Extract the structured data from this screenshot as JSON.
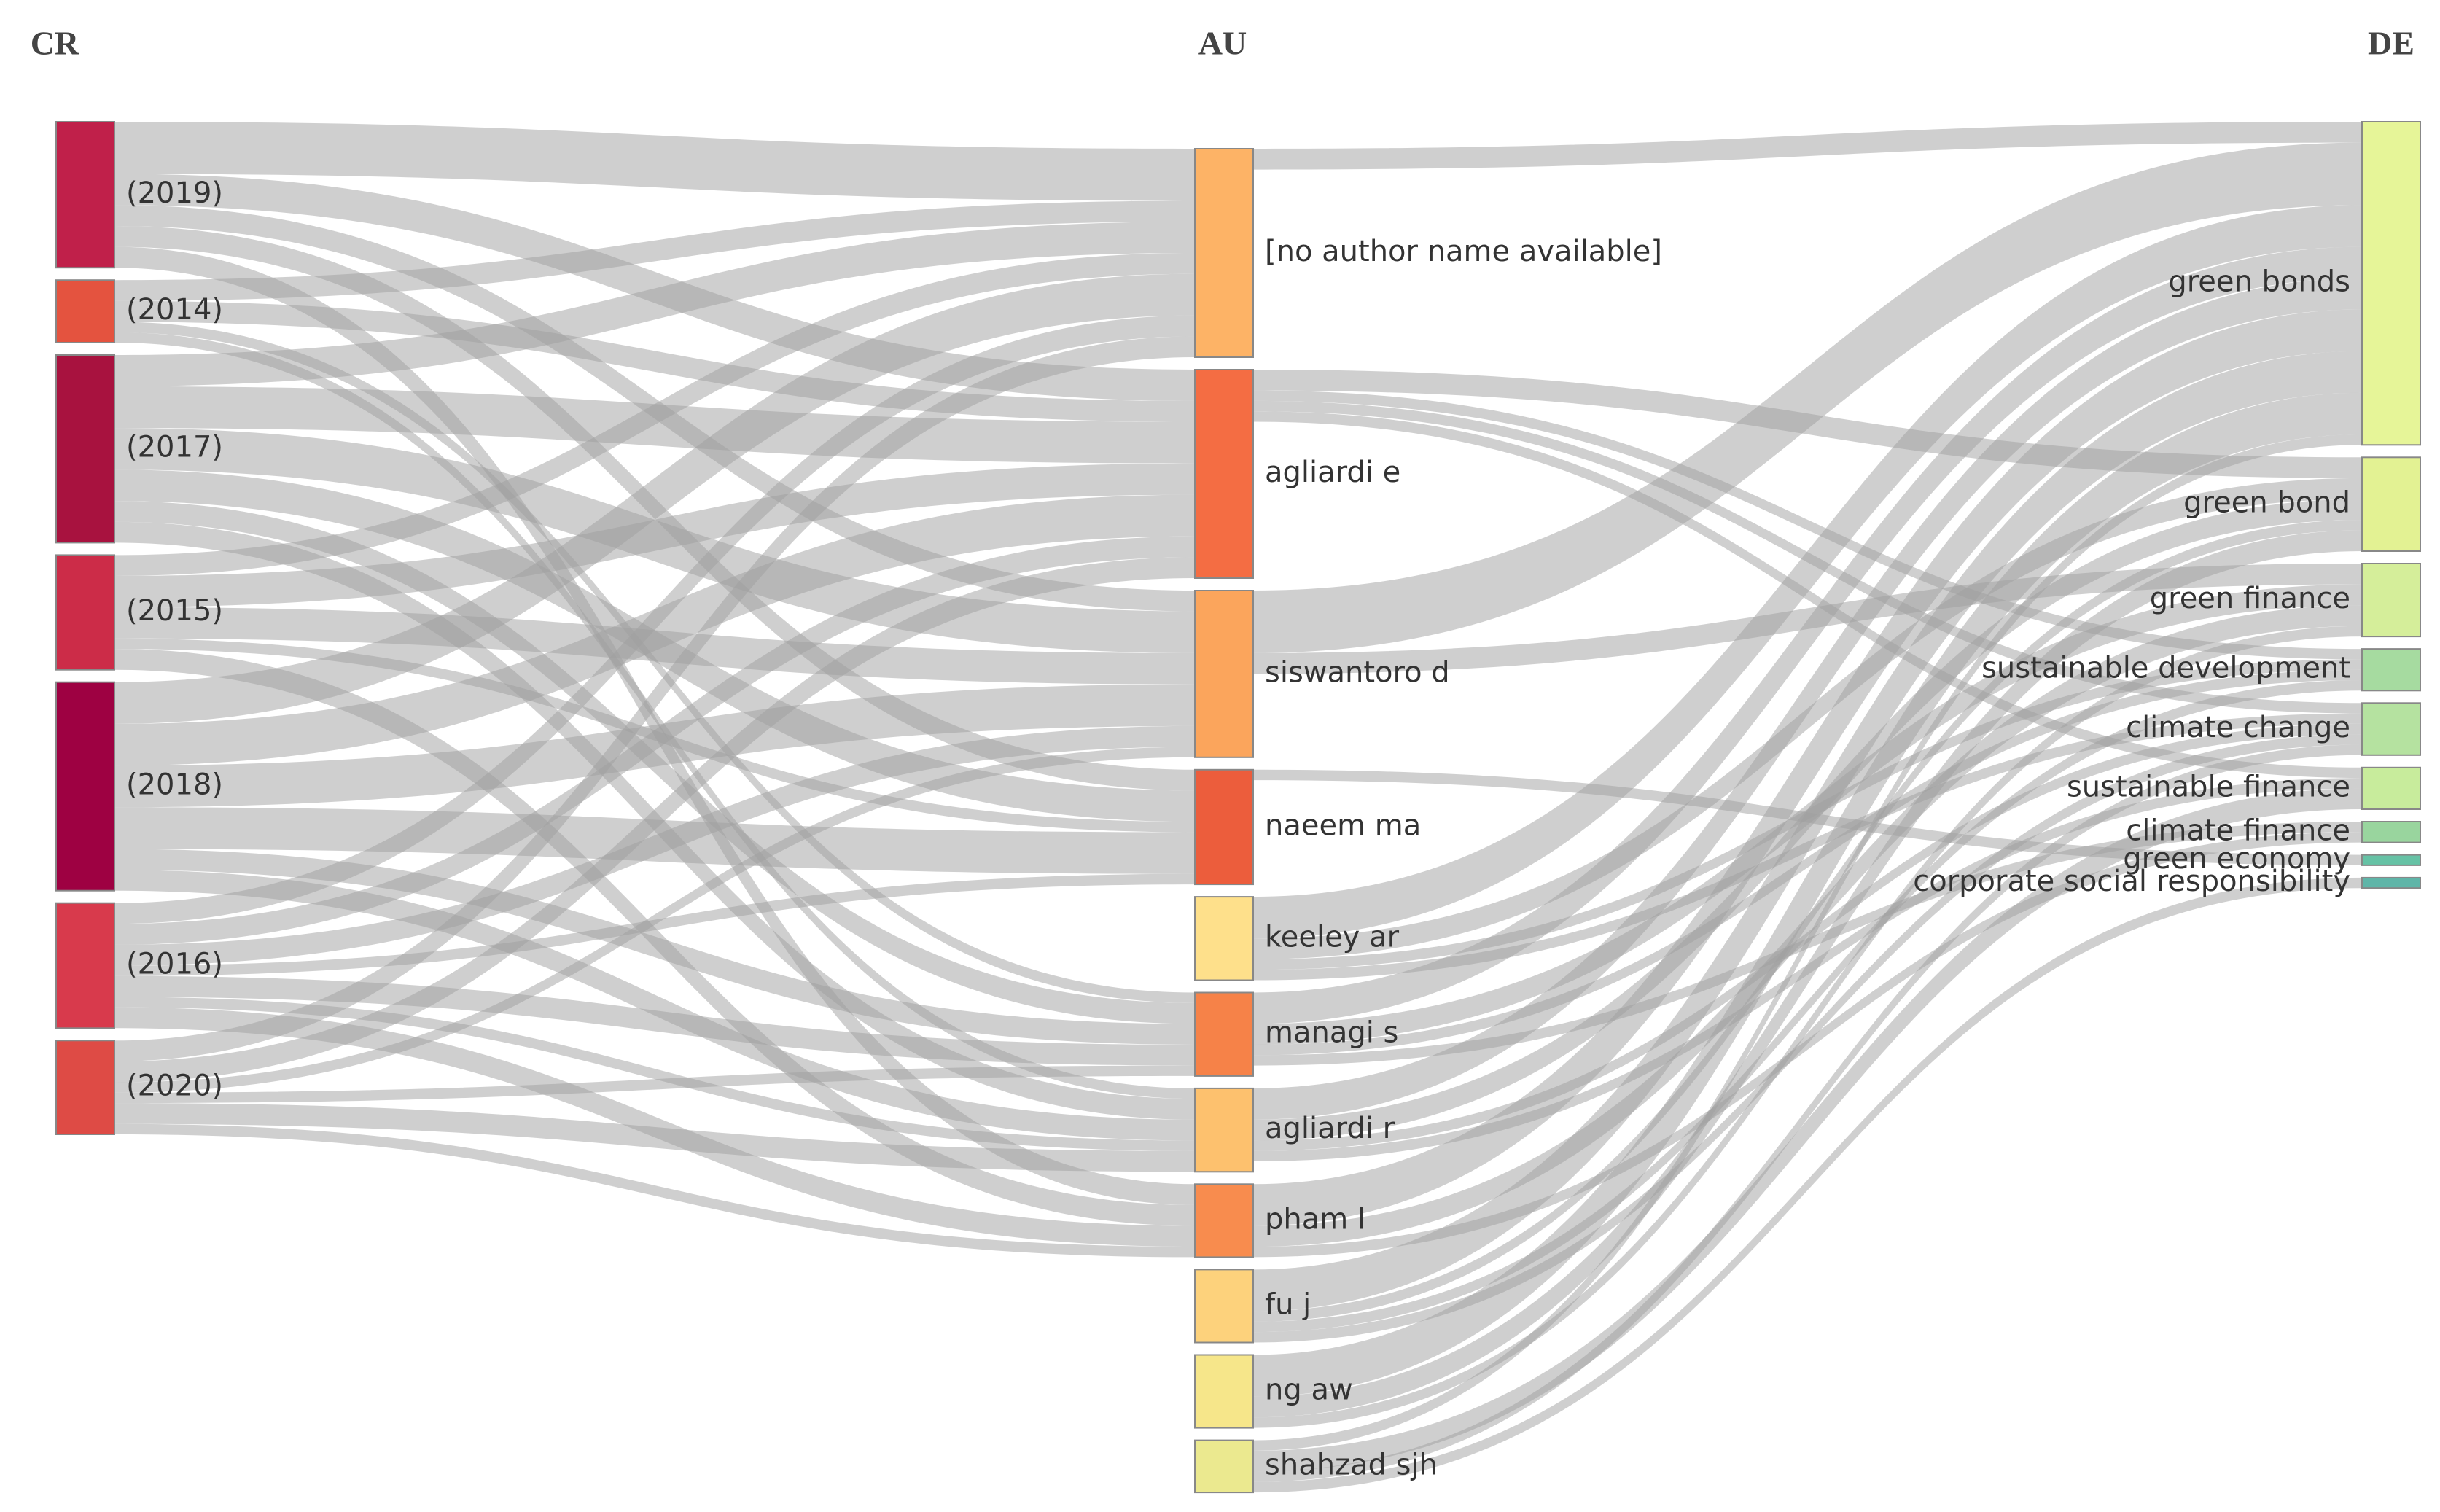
{
  "chart_data": {
    "type": "sankey",
    "link_color": "#a0a0a0",
    "columns": [
      {
        "title": "CR",
        "nodes": [
          {
            "name": "(2019)",
            "color": "#c0204a"
          },
          {
            "name": "(2014)",
            "color": "#e4533f"
          },
          {
            "name": "(2017)",
            "color": "#a8123f"
          },
          {
            "name": "(2015)",
            "color": "#cc2c48"
          },
          {
            "name": "(2018)",
            "color": "#9e0142"
          },
          {
            "name": "(2016)",
            "color": "#d83a4c"
          },
          {
            "name": "(2020)",
            "color": "#de4b45"
          }
        ]
      },
      {
        "title": "AU",
        "nodes": [
          {
            "name": "[no author name available]",
            "color": "#fdb366"
          },
          {
            "name": "agliardi e",
            "color": "#f46d43"
          },
          {
            "name": "siswantoro d",
            "color": "#fba55c"
          },
          {
            "name": "naeem ma",
            "color": "#ec5d3c"
          },
          {
            "name": "keeley ar",
            "color": "#fee08b"
          },
          {
            "name": "managi s",
            "color": "#f68248"
          },
          {
            "name": "agliardi r",
            "color": "#fdc16e"
          },
          {
            "name": "pham l",
            "color": "#f88c4e"
          },
          {
            "name": "fu j",
            "color": "#fdd27c"
          },
          {
            "name": "ng aw",
            "color": "#f6e68a"
          },
          {
            "name": "shahzad sjh",
            "color": "#ebe98f"
          }
        ]
      },
      {
        "title": "DE",
        "nodes": [
          {
            "name": "green bonds",
            "color": "#e6f598"
          },
          {
            "name": "green bond",
            "color": "#e3f293"
          },
          {
            "name": "green finance",
            "color": "#d5ee9a"
          },
          {
            "name": "sustainable development",
            "color": "#a6dba0"
          },
          {
            "name": "climate change",
            "color": "#b5e2a0"
          },
          {
            "name": "sustainable finance",
            "color": "#c8ec9c"
          },
          {
            "name": "climate finance",
            "color": "#99d59e"
          },
          {
            "name": "green economy",
            "color": "#66c2a5"
          },
          {
            "name": "corporate social responsibility",
            "color": "#5fb5a8"
          }
        ]
      }
    ],
    "links": [
      [
        {
          "source": 0,
          "target": 0,
          "value": 5
        },
        {
          "source": 0,
          "target": 1,
          "value": 3
        },
        {
          "source": 0,
          "target": 2,
          "value": 2
        },
        {
          "source": 0,
          "target": 3,
          "value": 2
        },
        {
          "source": 0,
          "target": 7,
          "value": 2
        },
        {
          "source": 1,
          "target": 0,
          "value": 2
        },
        {
          "source": 1,
          "target": 1,
          "value": 2
        },
        {
          "source": 1,
          "target": 5,
          "value": 1
        },
        {
          "source": 1,
          "target": 6,
          "value": 1
        },
        {
          "source": 2,
          "target": 0,
          "value": 3
        },
        {
          "source": 2,
          "target": 1,
          "value": 4
        },
        {
          "source": 2,
          "target": 2,
          "value": 4
        },
        {
          "source": 2,
          "target": 3,
          "value": 3
        },
        {
          "source": 2,
          "target": 5,
          "value": 2
        },
        {
          "source": 2,
          "target": 6,
          "value": 2
        },
        {
          "source": 3,
          "target": 0,
          "value": 2
        },
        {
          "source": 3,
          "target": 1,
          "value": 3
        },
        {
          "source": 3,
          "target": 2,
          "value": 3
        },
        {
          "source": 3,
          "target": 3,
          "value": 1
        },
        {
          "source": 3,
          "target": 7,
          "value": 2
        },
        {
          "source": 4,
          "target": 0,
          "value": 4
        },
        {
          "source": 4,
          "target": 1,
          "value": 4
        },
        {
          "source": 4,
          "target": 2,
          "value": 4
        },
        {
          "source": 4,
          "target": 3,
          "value": 4
        },
        {
          "source": 4,
          "target": 5,
          "value": 2
        },
        {
          "source": 4,
          "target": 6,
          "value": 2
        },
        {
          "source": 5,
          "target": 0,
          "value": 2
        },
        {
          "source": 5,
          "target": 1,
          "value": 2
        },
        {
          "source": 5,
          "target": 2,
          "value": 2
        },
        {
          "source": 5,
          "target": 3,
          "value": 1
        },
        {
          "source": 5,
          "target": 5,
          "value": 2
        },
        {
          "source": 5,
          "target": 6,
          "value": 1
        },
        {
          "source": 5,
          "target": 7,
          "value": 2
        },
        {
          "source": 6,
          "target": 0,
          "value": 2
        },
        {
          "source": 6,
          "target": 1,
          "value": 2
        },
        {
          "source": 6,
          "target": 2,
          "value": 1
        },
        {
          "source": 6,
          "target": 5,
          "value": 1
        },
        {
          "source": 6,
          "target": 6,
          "value": 2
        },
        {
          "source": 6,
          "target": 7,
          "value": 1
        }
      ],
      [
        {
          "source": 0,
          "target": 0,
          "value": 2
        },
        {
          "source": 1,
          "target": 1,
          "value": 2
        },
        {
          "source": 1,
          "target": 3,
          "value": 1
        },
        {
          "source": 1,
          "target": 4,
          "value": 1
        },
        {
          "source": 1,
          "target": 5,
          "value": 1
        },
        {
          "source": 2,
          "target": 0,
          "value": 6
        },
        {
          "source": 2,
          "target": 2,
          "value": 2
        },
        {
          "source": 3,
          "target": 7,
          "value": 1
        },
        {
          "source": 4,
          "target": 0,
          "value": 4
        },
        {
          "source": 4,
          "target": 1,
          "value": 2
        },
        {
          "source": 4,
          "target": 3,
          "value": 1
        },
        {
          "source": 4,
          "target": 4,
          "value": 1
        },
        {
          "source": 5,
          "target": 0,
          "value": 3
        },
        {
          "source": 5,
          "target": 2,
          "value": 2
        },
        {
          "source": 5,
          "target": 3,
          "value": 1
        },
        {
          "source": 5,
          "target": 6,
          "value": 1
        },
        {
          "source": 6,
          "target": 0,
          "value": 3
        },
        {
          "source": 6,
          "target": 1,
          "value": 2
        },
        {
          "source": 6,
          "target": 4,
          "value": 1
        },
        {
          "source": 6,
          "target": 5,
          "value": 1
        },
        {
          "source": 7,
          "target": 0,
          "value": 4
        },
        {
          "source": 7,
          "target": 2,
          "value": 2
        },
        {
          "source": 7,
          "target": 6,
          "value": 1
        },
        {
          "source": 8,
          "target": 0,
          "value": 4
        },
        {
          "source": 8,
          "target": 1,
          "value": 1
        },
        {
          "source": 8,
          "target": 3,
          "value": 1
        },
        {
          "source": 8,
          "target": 4,
          "value": 1
        },
        {
          "source": 9,
          "target": 0,
          "value": 4
        },
        {
          "source": 9,
          "target": 1,
          "value": 2
        },
        {
          "source": 9,
          "target": 2,
          "value": 1
        },
        {
          "source": 10,
          "target": 0,
          "value": 1
        },
        {
          "source": 10,
          "target": 5,
          "value": 2
        },
        {
          "source": 10,
          "target": 4,
          "value": 1
        },
        {
          "source": 10,
          "target": 8,
          "value": 1
        }
      ]
    ]
  }
}
